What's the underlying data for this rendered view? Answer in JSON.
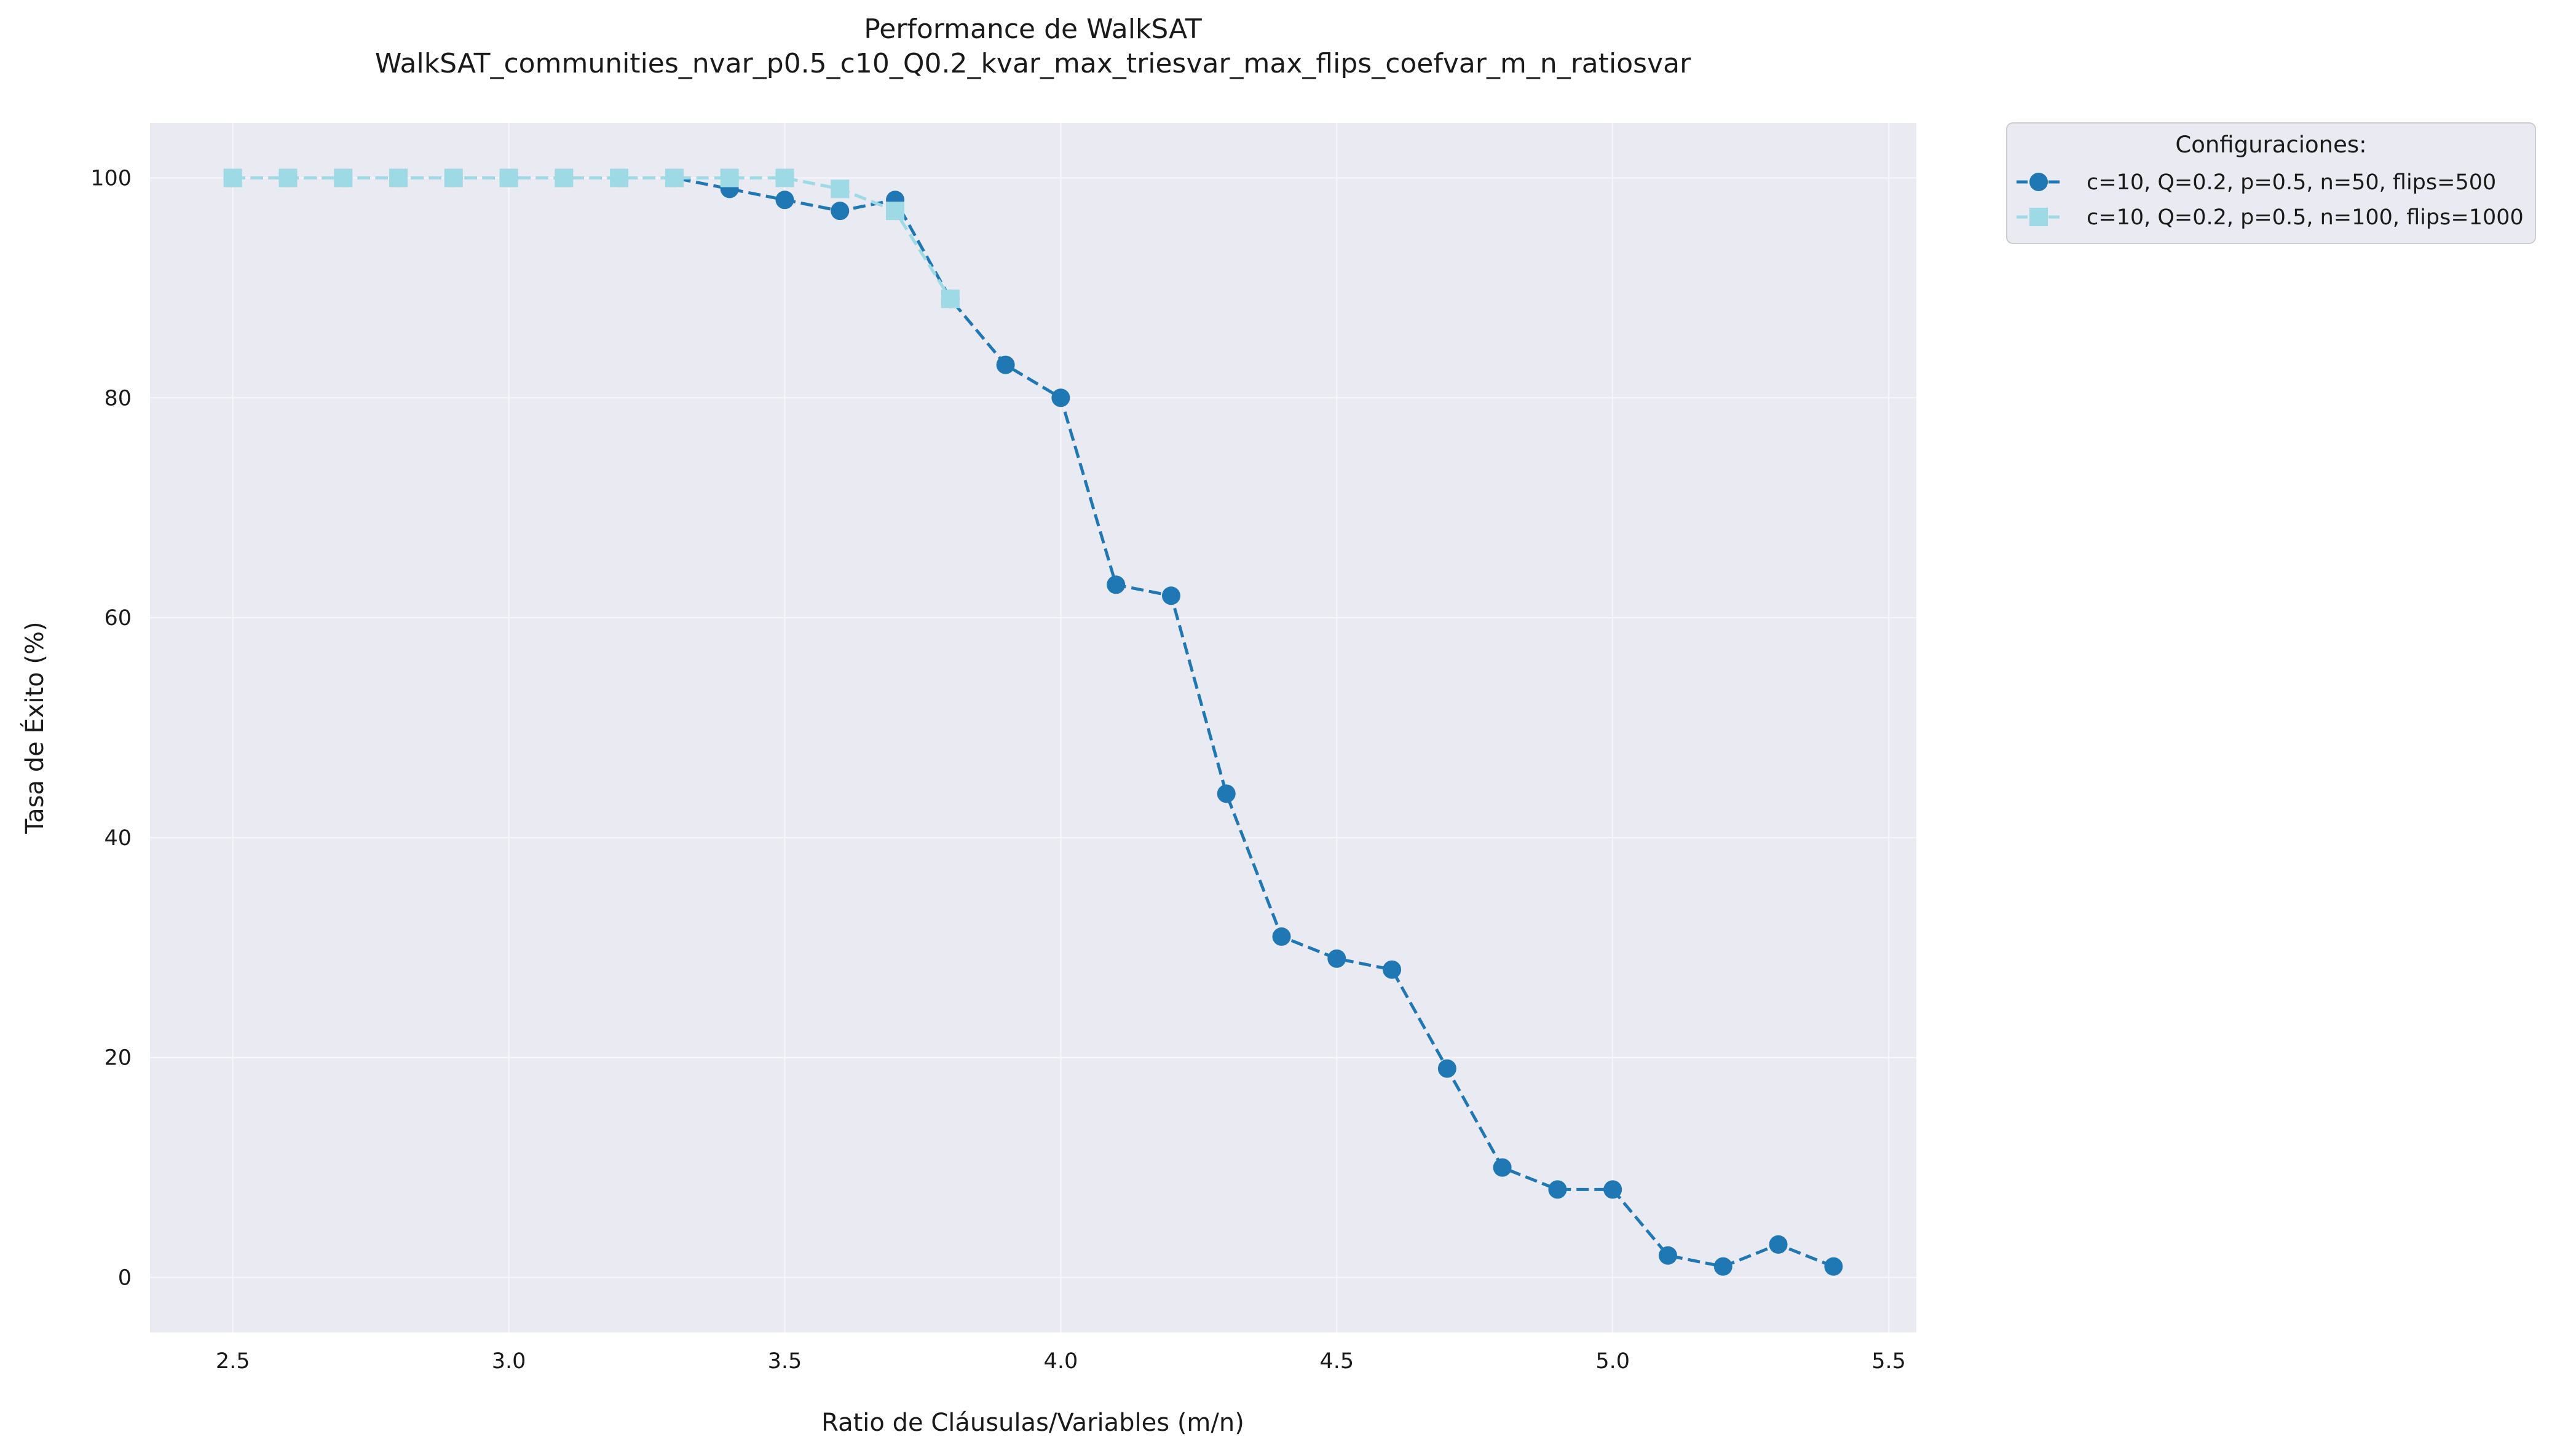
{
  "chart_data": {
    "type": "line",
    "title": "Performance de WalkSAT",
    "subtitle": "WalkSAT_communities_nvar_p0.5_c10_Q0.2_kvar_max_triesvar_max_flips_coefvar_m_n_ratiosvar",
    "xlabel": "Ratio de Cláusulas/Variables (m/n)",
    "ylabel": "Tasa de Éxito (%)",
    "xlim": [
      2.35,
      5.55
    ],
    "ylim": [
      -5,
      105
    ],
    "xticks": [
      2.5,
      3.0,
      3.5,
      4.0,
      4.5,
      5.0,
      5.5
    ],
    "xtick_labels": [
      "2.5",
      "3.0",
      "3.5",
      "4.0",
      "4.5",
      "5.0",
      "5.5"
    ],
    "yticks": [
      0,
      20,
      40,
      60,
      80,
      100
    ],
    "ytick_labels": [
      "0",
      "20",
      "40",
      "60",
      "80",
      "100"
    ],
    "grid": true,
    "legend": {
      "title": "Configuraciones:",
      "placement": "outside-top-right"
    },
    "series": [
      {
        "name": "c=10, Q=0.2, p=0.5, n=50, flips=500",
        "color": "#1f77b4",
        "marker": "circle",
        "linestyle": "dashed",
        "x": [
          2.5,
          2.6,
          2.7,
          2.8,
          2.9,
          3.0,
          3.1,
          3.2,
          3.3,
          3.4,
          3.5,
          3.6,
          3.7,
          3.8,
          3.9,
          4.0,
          4.1,
          4.2,
          4.3,
          4.4,
          4.5,
          4.6,
          4.7,
          4.8,
          4.9,
          5.0,
          5.1,
          5.2,
          5.3,
          5.4
        ],
        "y": [
          100,
          100,
          100,
          100,
          100,
          100,
          100,
          100,
          100,
          99,
          98,
          97,
          98,
          89,
          83,
          80,
          63,
          62,
          44,
          31,
          29,
          28,
          19,
          10,
          8,
          8,
          2,
          1,
          3,
          1
        ]
      },
      {
        "name": "c=10, Q=0.2, p=0.5, n=100, flips=1000",
        "color": "#9edae5",
        "marker": "square",
        "linestyle": "dashed",
        "x": [
          2.5,
          2.6,
          2.7,
          2.8,
          2.9,
          3.0,
          3.1,
          3.2,
          3.3,
          3.4,
          3.5,
          3.6,
          3.7,
          3.8
        ],
        "y": [
          100,
          100,
          100,
          100,
          100,
          100,
          100,
          100,
          100,
          100,
          100,
          99,
          97,
          89
        ]
      }
    ],
    "colors": {
      "plot_background": "#eaeaf2",
      "grid": "#f7f7fb",
      "legend_background": "#eaeaf2",
      "legend_border": "#cccccc"
    }
  }
}
